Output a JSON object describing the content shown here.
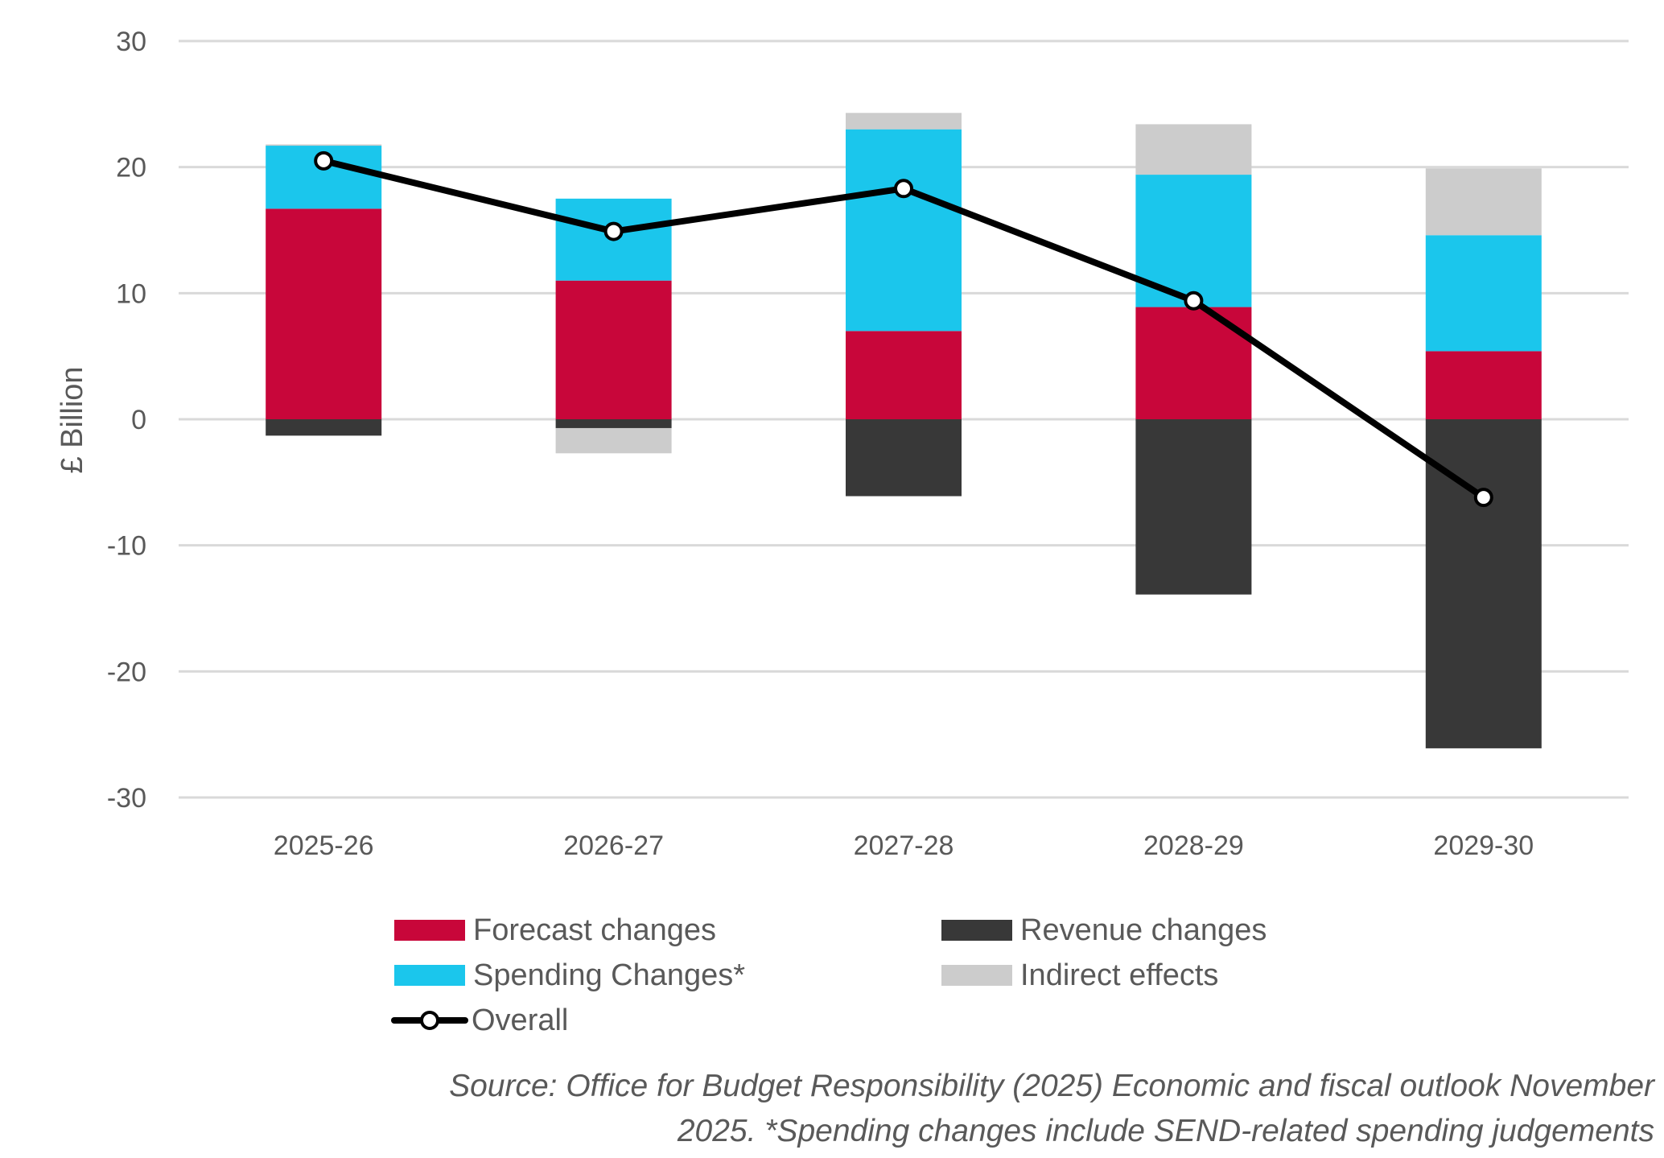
{
  "chart_data": {
    "type": "bar",
    "subtype": "stacked-bar-with-line",
    "title": "",
    "xlabel": "",
    "ylabel": "£ Billion",
    "ylim": [
      -30,
      30
    ],
    "yticks": [
      30,
      20,
      10,
      0,
      -10,
      -20,
      -30
    ],
    "ytick_labels": [
      "30",
      "20",
      "10",
      "0",
      "-10",
      "-20",
      "-30"
    ],
    "grid": true,
    "legend_position": "bottom",
    "categories": [
      "2025-26",
      "2026-27",
      "2027-28",
      "2028-29",
      "2029-30"
    ],
    "series": [
      {
        "name": "Forecast changes",
        "kind": "bar",
        "color": "#C8063A",
        "values": [
          16.7,
          11.0,
          7.0,
          8.9,
          5.4
        ]
      },
      {
        "name": "Spending Changes*",
        "kind": "bar",
        "color": "#1BC6EC",
        "values": [
          5.0,
          6.5,
          16.0,
          10.5,
          9.2
        ]
      },
      {
        "name": "Indirect effects",
        "kind": "bar",
        "color": "#CCCCCC",
        "values": [
          0.1,
          -2.0,
          1.3,
          4.0,
          5.3
        ]
      },
      {
        "name": "Revenue changes",
        "kind": "bar",
        "color": "#383838",
        "values": [
          -1.3,
          -0.7,
          -6.1,
          -13.9,
          -26.1
        ]
      },
      {
        "name": "Overall",
        "kind": "line",
        "color": "#000000",
        "values": [
          20.5,
          14.9,
          18.3,
          9.4,
          -6.2
        ]
      }
    ]
  },
  "legend": {
    "items": [
      {
        "label": "Forecast changes",
        "color": "#C8063A"
      },
      {
        "label": "Revenue changes",
        "color": "#383838"
      },
      {
        "label": "Spending Changes*",
        "color": "#1BC6EC"
      },
      {
        "label": "Indirect effects",
        "color": "#CCCCCC"
      },
      {
        "label": "Overall",
        "color": "#000000"
      }
    ]
  },
  "source": {
    "line1": "Source: Office for Budget Responsibility (2025) Economic and fiscal outlook November",
    "line2": "2025. *Spending changes include SEND-related spending judgements"
  }
}
